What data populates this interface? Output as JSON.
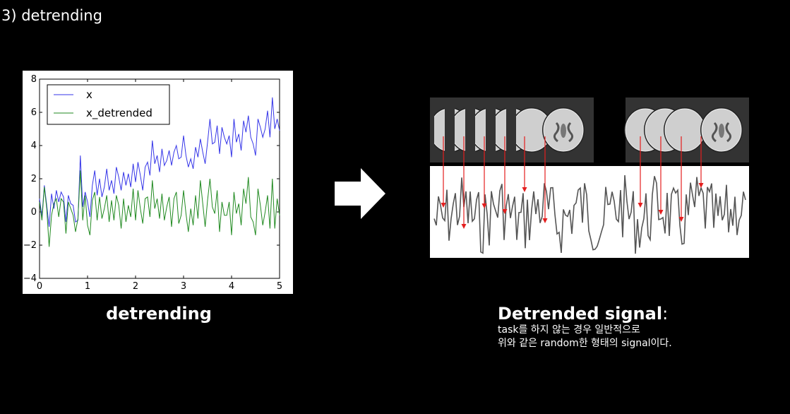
{
  "slide": {
    "title": "3) detrending",
    "left_caption": "detrending",
    "right_caption_head": "Detrended signal",
    "right_caption_colon": ":",
    "right_caption_lines": [
      "task를 하지 않는 경우 일반적으로",
      "위와 같은 random한 형태의 signal이다."
    ]
  },
  "chart_data": {
    "type": "line",
    "title": "",
    "xlabel": "",
    "ylabel": "",
    "xlim": [
      0,
      5
    ],
    "ylim": [
      -4,
      8
    ],
    "xticks": [
      0,
      1,
      2,
      3,
      4,
      5
    ],
    "yticks": [
      -4,
      -2,
      0,
      2,
      4,
      6,
      8
    ],
    "grid": false,
    "legend_position": "top-left",
    "x": [
      0.0,
      0.05,
      0.1,
      0.15,
      0.2,
      0.25,
      0.3,
      0.35,
      0.4,
      0.45,
      0.5,
      0.55,
      0.6,
      0.65,
      0.7,
      0.75,
      0.8,
      0.85,
      0.9,
      0.95,
      1.0,
      1.05,
      1.1,
      1.15,
      1.2,
      1.25,
      1.3,
      1.35,
      1.4,
      1.45,
      1.5,
      1.55,
      1.6,
      1.65,
      1.7,
      1.75,
      1.8,
      1.85,
      1.9,
      1.95,
      2.0,
      2.05,
      2.1,
      2.15,
      2.2,
      2.25,
      2.3,
      2.35,
      2.4,
      2.45,
      2.5,
      2.55,
      2.6,
      2.65,
      2.7,
      2.75,
      2.8,
      2.85,
      2.9,
      2.95,
      3.0,
      3.05,
      3.1,
      3.15,
      3.2,
      3.25,
      3.3,
      3.35,
      3.4,
      3.45,
      3.5,
      3.55,
      3.6,
      3.65,
      3.7,
      3.75,
      3.8,
      3.85,
      3.9,
      3.95,
      4.0,
      4.05,
      4.1,
      4.15,
      4.2,
      4.25,
      4.3,
      4.35,
      4.4,
      4.45,
      4.5,
      4.55,
      4.6,
      4.65,
      4.7,
      4.75,
      4.8,
      4.85,
      4.9,
      4.95,
      5.0
    ],
    "series": [
      {
        "name": "x",
        "color": "#3535e8",
        "values": [
          0.8,
          -0.3,
          1.6,
          0.4,
          -0.9,
          1.1,
          0.2,
          1.3,
          0.6,
          1.2,
          0.9,
          -0.6,
          1.0,
          0.5,
          0.4,
          -0.6,
          -0.5,
          3.4,
          0.3,
          1.2,
          0.6,
          -0.3,
          1.6,
          2.5,
          1.0,
          2.0,
          0.9,
          1.5,
          2.6,
          1.3,
          1.9,
          1.1,
          2.7,
          2.1,
          1.3,
          2.4,
          1.6,
          2.3,
          1.5,
          2.9,
          1.8,
          3.0,
          2.2,
          1.3,
          2.7,
          3.0,
          2.2,
          4.3,
          2.9,
          3.4,
          2.4,
          3.8,
          2.8,
          3.1,
          3.7,
          2.8,
          3.6,
          4.0,
          3.2,
          3.3,
          4.6,
          3.4,
          2.7,
          3.2,
          2.6,
          3.9,
          3.3,
          4.4,
          3.6,
          2.9,
          4.2,
          5.6,
          4.1,
          4.2,
          5.2,
          3.5,
          5.1,
          4.5,
          4.1,
          4.6,
          3.3,
          5.6,
          4.2,
          4.7,
          3.7,
          5.5,
          4.8,
          5.8,
          4.5,
          4.1,
          3.4,
          5.6,
          5.1,
          4.5,
          5.0,
          6.1,
          4.5,
          6.9,
          5.0,
          5.6,
          4.9
        ]
      },
      {
        "name": "x_detrended",
        "color": "#218a21",
        "values": [
          0.6,
          -0.5,
          1.5,
          0.2,
          -2.1,
          -0.2,
          0.5,
          0.8,
          -0.3,
          0.8,
          0.6,
          -1.3,
          0.6,
          0.2,
          -0.2,
          -1.2,
          -0.4,
          2.5,
          -0.5,
          1.0,
          -0.8,
          -1.4,
          0.7,
          1.2,
          -0.5,
          0.9,
          -0.4,
          0.2,
          1.0,
          -0.6,
          0.7,
          -0.5,
          1.0,
          0.4,
          -1.0,
          0.8,
          -0.6,
          0.4,
          -0.3,
          1.4,
          -0.5,
          1.3,
          0.2,
          -0.7,
          0.8,
          0.9,
          -0.3,
          1.9,
          0.2,
          0.8,
          -0.4,
          1.1,
          -0.5,
          0.3,
          0.9,
          -0.9,
          0.8,
          1.2,
          -0.7,
          -0.2,
          1.3,
          -0.1,
          -1.2,
          0.2,
          -0.8,
          1.0,
          -0.4,
          1.9,
          0.5,
          -0.9,
          0.7,
          2.0,
          0.3,
          -0.1,
          1.3,
          -1.2,
          0.6,
          -0.2,
          -0.2,
          0.6,
          -1.4,
          1.2,
          -0.1,
          0.5,
          -0.8,
          1.4,
          0.5,
          2.1,
          -0.3,
          -0.6,
          -1.4,
          1.4,
          0.4,
          -0.8,
          0.0,
          1.0,
          -1.0,
          2.0,
          -1.0,
          0.8,
          -0.2
        ]
      }
    ]
  },
  "illustration": {
    "brain_color": "#cfcfcf",
    "marker_color": "#e41e1e",
    "signal_color": "#555555"
  }
}
